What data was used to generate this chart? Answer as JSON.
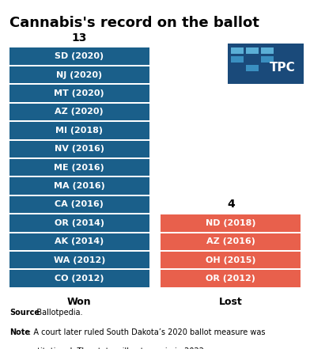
{
  "title": "Cannabis's record on the ballot",
  "won_count": "13",
  "lost_count": "4",
  "won_label": "Won",
  "lost_label": "Lost",
  "won_items": [
    "SD (2020)",
    "NJ (2020)",
    "MT (2020)",
    "AZ (2020)",
    "MI (2018)",
    "NV (2016)",
    "ME (2016)",
    "MA (2016)",
    "CA (2016)",
    "OR (2014)",
    "AK (2014)",
    "WA (2012)",
    "CO (2012)"
  ],
  "lost_items": [
    "ND (2018)",
    "AZ (2016)",
    "OH (2015)",
    "OR (2012)"
  ],
  "won_color": "#1a5f8a",
  "lost_color": "#e8604c",
  "bg_color": "#ffffff",
  "text_color_bar": "#ffffff",
  "title_fontsize": 13,
  "bar_label_fontsize": 8,
  "count_fontsize": 10,
  "axis_label_fontsize": 9,
  "note_fontsize": 7,
  "tpc_bg": "#1a4a7a",
  "tile_colors_row0": [
    "#5bafd6",
    "#5bafd6",
    "#5bafd6"
  ],
  "tile_colors_row1": [
    "#3a8fc0",
    "#1a4a7a",
    "#3a8fc0"
  ],
  "tile_colors_row2": [
    "#1a4a7a",
    "#3a8fc0",
    "#1a4a7a"
  ]
}
